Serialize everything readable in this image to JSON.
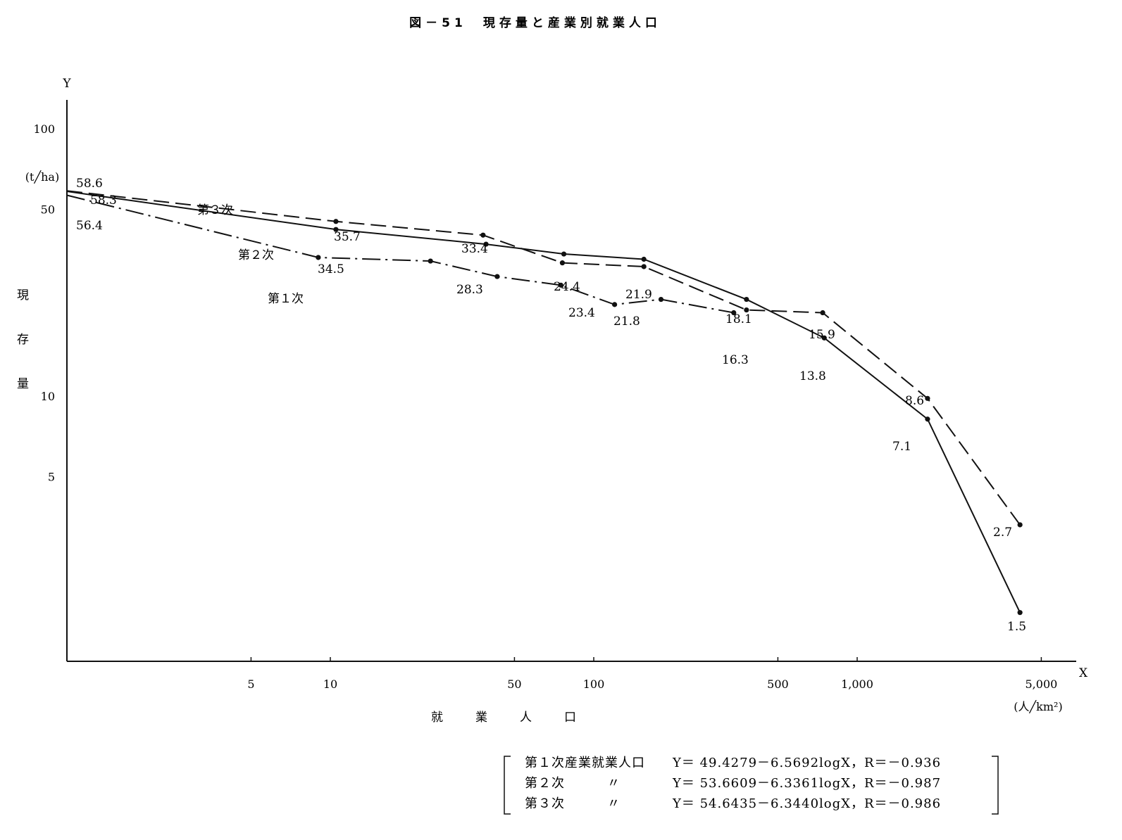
{
  "chart_data": {
    "type": "line",
    "title": "図－51　現存量と産業別就業人口",
    "y_axis": {
      "symbol": "Y",
      "label": "現存量",
      "unit": "(t╱ha)",
      "scale": "log",
      "ticks": [
        "100",
        "50",
        "10",
        "5"
      ],
      "range": [
        1.2,
        150
      ]
    },
    "x_axis": {
      "symbol": "X",
      "label": "就業人口",
      "unit": "(人╱km²)",
      "scale": "log",
      "ticks": [
        "5",
        "10",
        "50",
        "100",
        "500",
        "1,000",
        "5,000"
      ],
      "range": [
        1,
        5000
      ]
    },
    "series": [
      {
        "name": "第１次",
        "style": "dashdot",
        "points": [
          [
            1,
            56.4
          ],
          [
            9,
            33
          ],
          [
            24,
            32
          ],
          [
            43,
            28
          ],
          [
            75,
            26
          ],
          [
            120,
            22
          ],
          [
            180,
            23
          ],
          [
            340,
            20.5
          ]
        ]
      },
      {
        "name": "第２次",
        "style": "solid",
        "points": [
          [
            1,
            58.3
          ],
          [
            10.5,
            42
          ],
          [
            39,
            37
          ],
          [
            77,
            34
          ],
          [
            155,
            32.5
          ],
          [
            380,
            23
          ],
          [
            750,
            16.5
          ],
          [
            1850,
            8.2
          ],
          [
            4150,
            1.55
          ]
        ]
      },
      {
        "name": "第３次",
        "style": "dashed",
        "points": [
          [
            1,
            58.6
          ],
          [
            10.5,
            45
          ],
          [
            38,
            40
          ],
          [
            76,
            31.5
          ],
          [
            155,
            30.5
          ],
          [
            380,
            21
          ],
          [
            740,
            20.5
          ],
          [
            1850,
            9.8
          ],
          [
            4150,
            3.3
          ]
        ]
      }
    ],
    "data_labels": [
      "58.6",
      "58.3",
      "56.4",
      "35.7",
      "34.5",
      "33.4",
      "28.3",
      "24.4",
      "23.4",
      "21.9",
      "21.8",
      "18.1",
      "16.3",
      "15.9",
      "13.8",
      "8.6",
      "7.1",
      "2.7",
      "1.5"
    ],
    "equations": [
      {
        "name": "第１次産業就業人口",
        "ditto": "",
        "formula": "Y＝ 49.4279－6.5692logX，R＝－0.936"
      },
      {
        "name": "第２次",
        "ditto": "〃",
        "formula": "Y＝ 53.6609－6.3361logX，R＝－0.987"
      },
      {
        "name": "第３次",
        "ditto": "〃",
        "formula": "Y＝ 54.6435－6.3440logX，R＝－0.986"
      }
    ]
  }
}
